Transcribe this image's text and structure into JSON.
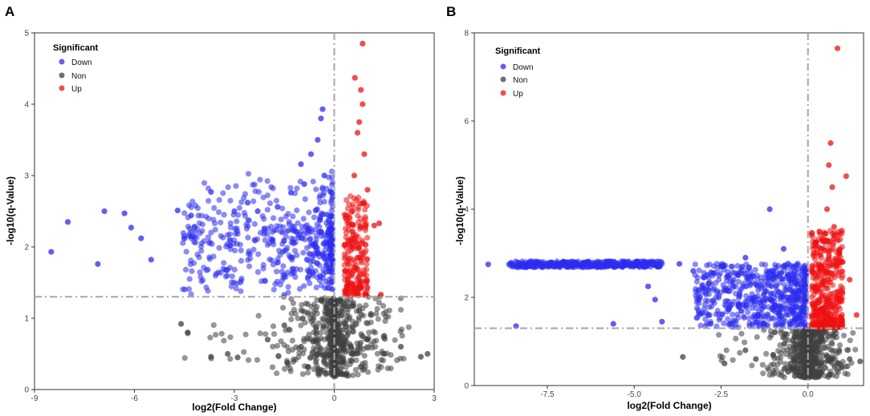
{
  "colors": {
    "down": "#2b2bf0",
    "non": "#404040",
    "up": "#ee1111",
    "threshold": "#a6a6a6"
  },
  "chart_data": [
    {
      "panel": "A",
      "type": "scatter",
      "xlabel": "log2(Fold Change)",
      "ylabel": "-log10(q-Value)",
      "xlim": [
        -9,
        3
      ],
      "ylim": [
        0,
        5
      ],
      "xticks": [
        -9,
        -6,
        -3,
        0,
        3
      ],
      "xtick_labels": [
        "-9",
        "-6",
        "-3",
        "0",
        "3"
      ],
      "yticks": [
        0,
        1,
        2,
        3,
        4,
        5
      ],
      "ytick_labels": [
        "0",
        "1",
        "2",
        "3",
        "4",
        "5"
      ],
      "vline": 0,
      "hline": 1.3,
      "legend": {
        "title": "Significant",
        "entries": [
          "Down",
          "Non",
          "Up"
        ],
        "position": "top-left"
      },
      "sample_points": {
        "Down": [
          [
            -8.5,
            1.93
          ],
          [
            -8,
            2.35
          ],
          [
            -7.1,
            1.76
          ],
          [
            -6.9,
            2.5
          ],
          [
            -6.3,
            2.47
          ],
          [
            -6.1,
            2.27
          ],
          [
            -5.8,
            2.12
          ],
          [
            -5.5,
            1.82
          ],
          [
            -4.7,
            2.51
          ],
          [
            -4.3,
            2.44
          ],
          [
            -3.7,
            2.77
          ],
          [
            -3.0,
            2.5
          ],
          [
            -2.6,
            2.62
          ],
          [
            -2.3,
            2.5
          ],
          [
            -1.7,
            2.56
          ],
          [
            -1.3,
            2.76
          ],
          [
            -1.0,
            3.16
          ],
          [
            -0.9,
            2.88
          ],
          [
            -0.7,
            3.3
          ],
          [
            -0.5,
            3.5
          ],
          [
            -0.4,
            3.8
          ],
          [
            -0.35,
            3.93
          ],
          [
            -0.3,
            3.0
          ],
          [
            -0.2,
            2.2
          ]
        ],
        "Non": [
          [
            -4.6,
            0.92
          ],
          [
            -4.4,
            0.8
          ],
          [
            -3.7,
            0.46
          ],
          [
            -3.2,
            0.5
          ],
          [
            -2.9,
            0.45
          ],
          [
            -2.0,
            0.7
          ],
          [
            -1.5,
            0.9
          ],
          [
            -1.0,
            0.6
          ],
          [
            -0.5,
            0.5
          ],
          [
            0.2,
            0.3
          ],
          [
            0.5,
            0.6
          ],
          [
            1.0,
            0.7
          ],
          [
            1.5,
            0.5
          ],
          [
            2.0,
            0.6
          ],
          [
            2.6,
            0.46
          ],
          [
            2.8,
            0.5
          ]
        ],
        "Up": [
          [
            0.4,
            1.5
          ],
          [
            0.5,
            2.0
          ],
          [
            0.55,
            2.5
          ],
          [
            0.6,
            3.0
          ],
          [
            0.62,
            4.37
          ],
          [
            0.7,
            3.6
          ],
          [
            0.75,
            3.75
          ],
          [
            0.8,
            4.2
          ],
          [
            0.85,
            4.0
          ],
          [
            0.9,
            3.3
          ],
          [
            1.0,
            2.8
          ],
          [
            1.2,
            2.3
          ],
          [
            1.35,
            2.33
          ],
          [
            1.4,
            1.33
          ],
          [
            0.85,
            4.85
          ]
        ]
      }
    },
    {
      "panel": "B",
      "type": "scatter",
      "xlabel": "log2(Fold Change)",
      "ylabel": "-log10(q-Value)",
      "xlim": [
        -9.6,
        1.6
      ],
      "ylim": [
        0,
        8
      ],
      "xticks": [
        -7.5,
        -5.0,
        -2.5,
        0.0
      ],
      "xtick_labels": [
        "-7.5",
        "-5.0",
        "-2.5",
        "0.0"
      ],
      "yticks": [
        0,
        2,
        4,
        6,
        8
      ],
      "ytick_labels": [
        "0",
        "2",
        "4",
        "6",
        "8"
      ],
      "vline": 0,
      "hline": 1.3,
      "legend": {
        "title": "Significant",
        "entries": [
          "Down",
          "Non",
          "Up"
        ],
        "position": "top-left"
      },
      "sample_points": {
        "Down": [
          [
            -9.2,
            2.75
          ],
          [
            -8.6,
            2.75
          ],
          [
            -8.4,
            1.35
          ],
          [
            -7.8,
            2.75
          ],
          [
            -7.0,
            2.75
          ],
          [
            -6.5,
            2.75
          ],
          [
            -6.0,
            2.75
          ],
          [
            -5.6,
            1.4
          ],
          [
            -5.3,
            2.78
          ],
          [
            -5.0,
            2.75
          ],
          [
            -4.6,
            2.25
          ],
          [
            -4.4,
            1.95
          ],
          [
            -4.2,
            1.45
          ],
          [
            -3.7,
            2.76
          ],
          [
            -3.3,
            2.6
          ],
          [
            -3.0,
            2.2
          ],
          [
            -2.5,
            2.7
          ],
          [
            -2.0,
            2.5
          ],
          [
            -1.8,
            2.9
          ],
          [
            -1.5,
            2.3
          ],
          [
            -1.1,
            4.0
          ],
          [
            -1.0,
            2.6
          ],
          [
            -0.7,
            3.1
          ],
          [
            -0.5,
            2.0
          ]
        ],
        "Non": [
          [
            -3.6,
            0.65
          ],
          [
            -2.4,
            0.5
          ],
          [
            -1.8,
            0.8
          ],
          [
            -1.5,
            0.6
          ],
          [
            -1.0,
            0.7
          ],
          [
            -0.5,
            0.5
          ],
          [
            0.2,
            0.3
          ],
          [
            0.5,
            0.4
          ],
          [
            0.9,
            0.8
          ],
          [
            1.2,
            0.6
          ],
          [
            1.5,
            0.55
          ]
        ],
        "Up": [
          [
            0.2,
            1.6
          ],
          [
            0.3,
            2.2
          ],
          [
            0.4,
            2.7
          ],
          [
            0.5,
            3.3
          ],
          [
            0.55,
            4.0
          ],
          [
            0.6,
            5.0
          ],
          [
            0.65,
            5.5
          ],
          [
            0.7,
            4.5
          ],
          [
            0.75,
            3.6
          ],
          [
            0.85,
            7.65
          ],
          [
            0.9,
            3.0
          ],
          [
            1.0,
            2.8
          ],
          [
            1.1,
            4.75
          ],
          [
            1.2,
            2.4
          ],
          [
            1.4,
            1.6
          ]
        ]
      }
    }
  ]
}
